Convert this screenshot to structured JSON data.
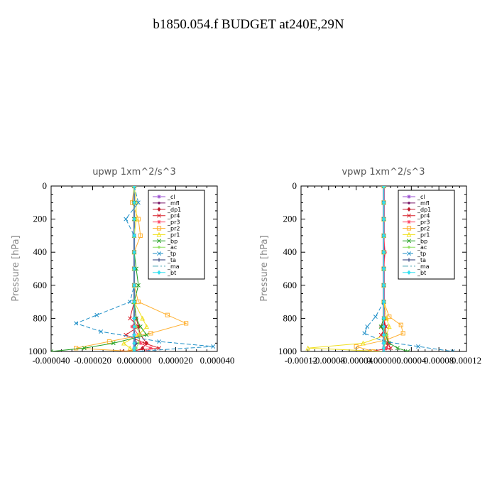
{
  "title": "b1850.054.f  BUDGET at240E,29N",
  "chart_data": [
    {
      "type": "line",
      "panel_title": "upwp   1xm^2/s^3",
      "ylabel": "Pressure  [hPa]",
      "xlim": [
        -4e-05,
        4e-05
      ],
      "ylim": [
        1000,
        0
      ],
      "xticks": [
        -4e-05,
        -2e-05,
        0,
        2e-05,
        4e-05
      ],
      "xtick_labels": [
        "-0.000040",
        "-0.000020",
        "0.000000",
        "0.000020",
        "0.000040"
      ],
      "yticks": [
        0,
        200,
        400,
        600,
        800,
        1000
      ],
      "ytick_labels": [
        "0",
        "200",
        "400",
        "600",
        "800",
        "1000"
      ],
      "legend_position": "top-right",
      "series": [
        {
          "name": "_cl",
          "color": "#9a4fd0",
          "marker": "*",
          "dash": "",
          "x": [
            0,
            0,
            0,
            0,
            0,
            0,
            0,
            0,
            0,
            0,
            0,
            0,
            0,
            0
          ],
          "y": [
            0,
            100,
            200,
            300,
            400,
            500,
            600,
            700,
            800,
            850,
            900,
            950,
            980,
            1000
          ]
        },
        {
          "name": "_mfl",
          "color": "#7a1a6a",
          "marker": "dot",
          "dash": "",
          "x": [
            0,
            0,
            0,
            0,
            0,
            0,
            0,
            0,
            0,
            0,
            0,
            0,
            0,
            0
          ],
          "y": [
            0,
            100,
            200,
            300,
            400,
            500,
            600,
            700,
            800,
            850,
            900,
            950,
            980,
            1000
          ]
        },
        {
          "name": "_dp1",
          "color": "#c0182a",
          "marker": "diamond",
          "dash": "",
          "x": [
            0,
            0,
            0,
            0,
            0,
            0,
            0,
            0,
            1e-06,
            2e-06,
            3e-06,
            6e-06,
            4e-06,
            0
          ],
          "y": [
            0,
            100,
            200,
            300,
            400,
            500,
            600,
            700,
            800,
            850,
            900,
            950,
            980,
            1000
          ]
        },
        {
          "name": "_pr4",
          "color": "#d8202a",
          "marker": "x",
          "dash": "",
          "x": [
            0,
            0,
            0,
            0,
            0,
            0,
            0,
            0,
            -2e-06,
            2e-06,
            -4e-06,
            5e-06,
            1.2e-05,
            -6e-06
          ],
          "y": [
            0,
            100,
            200,
            300,
            400,
            500,
            600,
            700,
            800,
            850,
            900,
            950,
            980,
            1000
          ]
        },
        {
          "name": "_pr3",
          "color": "#ff4060",
          "marker": "star",
          "dash": "",
          "x": [
            0,
            0,
            0,
            0,
            0,
            0,
            0,
            0,
            1e-06,
            -1e-06,
            2e-06,
            3e-06,
            8e-06,
            6e-06
          ],
          "y": [
            0,
            100,
            200,
            300,
            400,
            500,
            600,
            700,
            800,
            850,
            900,
            950,
            980,
            1000
          ]
        },
        {
          "name": "_pr2",
          "color": "#ffb030",
          "marker": "square",
          "dash": "",
          "x": [
            0,
            -1e-06,
            2e-06,
            3e-06,
            0,
            0,
            0,
            2e-06,
            1.6e-05,
            2.5e-05,
            8e-06,
            -1.2e-05,
            -2.8e-05,
            0
          ],
          "y": [
            0,
            100,
            200,
            300,
            400,
            500,
            600,
            700,
            780,
            830,
            890,
            940,
            980,
            1000
          ]
        },
        {
          "name": "_pr1",
          "color": "#f0e020",
          "marker": "triangle",
          "dash": "",
          "x": [
            0,
            1e-06,
            1e-06,
            0,
            0,
            0,
            0,
            0,
            4e-06,
            6e-06,
            2e-06,
            -5e-06,
            -2e-06,
            0
          ],
          "y": [
            0,
            100,
            200,
            300,
            400,
            500,
            600,
            700,
            800,
            850,
            900,
            950,
            980,
            1000
          ]
        },
        {
          "name": "_bp",
          "color": "#20a020",
          "marker": "x",
          "dash": "",
          "x": [
            0,
            0,
            0,
            0,
            0,
            1e-06,
            2e-06,
            0,
            1e-06,
            3e-06,
            6e-06,
            -1e-05,
            -2.4e-05,
            -4e-05
          ],
          "y": [
            0,
            100,
            200,
            300,
            400,
            500,
            600,
            700,
            800,
            850,
            900,
            950,
            980,
            1000
          ]
        },
        {
          "name": "_ac",
          "color": "#90e060",
          "marker": "dot",
          "dash": "",
          "x": [
            0,
            0,
            0,
            0,
            0,
            0,
            0,
            0,
            0,
            1e-06,
            3e-06,
            2e-06,
            1e-06,
            0
          ],
          "y": [
            0,
            100,
            200,
            300,
            400,
            500,
            600,
            700,
            800,
            850,
            900,
            950,
            980,
            1000
          ]
        },
        {
          "name": "_tp",
          "color": "#2090c8",
          "marker": "x",
          "dash": "6,3",
          "x": [
            0,
            2e-06,
            -4e-06,
            0,
            0,
            0,
            0,
            -2e-06,
            -1.8e-05,
            -2.8e-05,
            -1.6e-05,
            1.2e-05,
            3.8e-05,
            0
          ],
          "y": [
            0,
            100,
            200,
            300,
            400,
            500,
            600,
            700,
            780,
            830,
            880,
            940,
            970,
            1000
          ]
        },
        {
          "name": "_ta",
          "color": "#203070",
          "marker": "plus",
          "dash": "",
          "x": [
            0,
            0,
            0,
            0,
            0,
            0,
            0,
            0,
            0,
            0,
            0,
            1e-06,
            0,
            0
          ],
          "y": [
            0,
            100,
            200,
            300,
            400,
            500,
            600,
            700,
            800,
            850,
            900,
            950,
            980,
            1000
          ]
        },
        {
          "name": "_ma",
          "color": "#40a0b0",
          "marker": "none",
          "dash": "8,3,2,3",
          "x": [
            0,
            0,
            0,
            0,
            0,
            0,
            0,
            0,
            0,
            0,
            0,
            0,
            0,
            0
          ],
          "y": [
            0,
            100,
            200,
            300,
            400,
            500,
            600,
            700,
            800,
            850,
            900,
            950,
            980,
            1000
          ]
        },
        {
          "name": "_bt",
          "color": "#30e0f0",
          "marker": "diamond",
          "dash": "",
          "x": [
            0,
            0,
            0,
            0,
            0,
            0,
            0,
            0,
            0,
            0,
            0,
            0,
            0,
            0
          ],
          "y": [
            0,
            100,
            200,
            300,
            400,
            500,
            600,
            700,
            800,
            850,
            900,
            950,
            980,
            1000
          ]
        }
      ]
    },
    {
      "type": "line",
      "panel_title": "vpwp   1xm^2/s^3",
      "ylabel": "Pressure  [hPa]",
      "xlim": [
        -0.00012,
        0.00012
      ],
      "ylim": [
        1000,
        0
      ],
      "xticks": [
        -0.00012,
        -8e-05,
        -4e-05,
        0,
        4e-05,
        8e-05,
        0.00012
      ],
      "xtick_labels": [
        "-0.00012",
        "-0.00008",
        "-0.00004",
        "0.000000",
        "0.00004",
        "0.00008",
        "0.00012"
      ],
      "yticks": [
        0,
        200,
        400,
        600,
        800,
        1000
      ],
      "ytick_labels": [
        "0",
        "200",
        "400",
        "600",
        "800",
        "1000"
      ],
      "legend_position": "top-right",
      "series": [
        {
          "name": "_cl",
          "color": "#9a4fd0",
          "marker": "*",
          "dash": "",
          "x": [
            0,
            0,
            0,
            0,
            0,
            0,
            0,
            0,
            0,
            0,
            0,
            0,
            0,
            0
          ],
          "y": [
            0,
            100,
            200,
            300,
            400,
            500,
            600,
            700,
            800,
            850,
            900,
            950,
            980,
            1000
          ]
        },
        {
          "name": "_mfl",
          "color": "#7a1a6a",
          "marker": "dot",
          "dash": "",
          "x": [
            0,
            0,
            0,
            0,
            0,
            0,
            0,
            0,
            0,
            0,
            0,
            0,
            0,
            0
          ],
          "y": [
            0,
            100,
            200,
            300,
            400,
            500,
            600,
            700,
            800,
            850,
            900,
            950,
            980,
            1000
          ]
        },
        {
          "name": "_dp1",
          "color": "#c0182a",
          "marker": "diamond",
          "dash": "",
          "x": [
            0,
            0,
            0,
            0,
            0,
            0,
            0,
            0,
            0,
            2e-06,
            4e-06,
            6e-06,
            4e-06,
            0
          ],
          "y": [
            0,
            100,
            200,
            300,
            400,
            500,
            600,
            700,
            800,
            850,
            900,
            950,
            980,
            1000
          ]
        },
        {
          "name": "_pr4",
          "color": "#d8202a",
          "marker": "x",
          "dash": "",
          "x": [
            0,
            0,
            0,
            0,
            0,
            0,
            0,
            0,
            0,
            3e-06,
            -4e-06,
            6e-06,
            1e-05,
            -2e-05
          ],
          "y": [
            0,
            100,
            200,
            300,
            400,
            500,
            600,
            700,
            800,
            850,
            900,
            950,
            980,
            1000
          ]
        },
        {
          "name": "_pr3",
          "color": "#ff4060",
          "marker": "star",
          "dash": "",
          "x": [
            0,
            0,
            0,
            0,
            2e-06,
            0,
            0,
            0,
            4e-06,
            -4e-06,
            4e-06,
            8e-06,
            4e-06,
            0
          ],
          "y": [
            0,
            100,
            200,
            300,
            400,
            500,
            600,
            700,
            800,
            850,
            900,
            950,
            980,
            1000
          ]
        },
        {
          "name": "_pr2",
          "color": "#ffb030",
          "marker": "square",
          "dash": "",
          "x": [
            0,
            0,
            0,
            0,
            0,
            0,
            0,
            0,
            8e-06,
            2.5e-05,
            2.8e-05,
            4e-06,
            -4e-05,
            -1.5e-05
          ],
          "y": [
            0,
            100,
            200,
            300,
            400,
            500,
            600,
            700,
            790,
            840,
            890,
            930,
            970,
            1000
          ]
        },
        {
          "name": "_pr1",
          "color": "#f0e020",
          "marker": "triangle",
          "dash": "",
          "x": [
            0,
            0,
            0,
            0,
            0,
            0,
            0,
            0,
            4e-06,
            8e-06,
            4e-06,
            -3e-05,
            -0.00011,
            0
          ],
          "y": [
            0,
            100,
            200,
            300,
            400,
            500,
            600,
            700,
            800,
            850,
            900,
            950,
            980,
            1000
          ]
        },
        {
          "name": "_bp",
          "color": "#20a020",
          "marker": "x",
          "dash": "",
          "x": [
            0,
            0,
            0,
            0,
            0,
            0,
            0,
            0,
            0,
            -4e-06,
            2e-06,
            8e-06,
            2e-05,
            3.5e-05
          ],
          "y": [
            0,
            100,
            200,
            300,
            400,
            500,
            600,
            700,
            800,
            850,
            900,
            950,
            980,
            1000
          ]
        },
        {
          "name": "_ac",
          "color": "#90e060",
          "marker": "dot",
          "dash": "",
          "x": [
            0,
            0,
            0,
            0,
            0,
            0,
            0,
            0,
            0,
            0,
            4e-06,
            2e-06,
            0,
            0
          ],
          "y": [
            0,
            100,
            200,
            300,
            400,
            500,
            600,
            700,
            800,
            850,
            900,
            950,
            980,
            1000
          ]
        },
        {
          "name": "_tp",
          "color": "#2090c8",
          "marker": "x",
          "dash": "6,3",
          "x": [
            0,
            0,
            0,
            0,
            0,
            0,
            0,
            0,
            -1.2e-05,
            -2.4e-05,
            -2.8e-05,
            0,
            5e-05,
            0.0001
          ],
          "y": [
            0,
            100,
            200,
            300,
            400,
            500,
            600,
            700,
            790,
            850,
            890,
            940,
            970,
            1000
          ]
        },
        {
          "name": "_ta",
          "color": "#203070",
          "marker": "plus",
          "dash": "",
          "x": [
            0,
            0,
            0,
            0,
            0,
            0,
            0,
            0,
            0,
            0,
            0,
            0,
            0,
            0
          ],
          "y": [
            0,
            100,
            200,
            300,
            400,
            500,
            600,
            700,
            800,
            850,
            900,
            950,
            980,
            1000
          ]
        },
        {
          "name": "_ma",
          "color": "#40a0b0",
          "marker": "none",
          "dash": "8,3,2,3",
          "x": [
            0,
            0,
            0,
            0,
            0,
            0,
            0,
            0,
            0,
            0,
            0,
            0,
            0,
            0
          ],
          "y": [
            0,
            100,
            200,
            300,
            400,
            500,
            600,
            700,
            800,
            850,
            900,
            950,
            980,
            1000
          ]
        },
        {
          "name": "_bt",
          "color": "#30e0f0",
          "marker": "diamond",
          "dash": "",
          "x": [
            0,
            0,
            0,
            0,
            0,
            0,
            0,
            0,
            0,
            0,
            0,
            0,
            0,
            0
          ],
          "y": [
            0,
            100,
            200,
            300,
            400,
            500,
            600,
            700,
            800,
            850,
            900,
            950,
            980,
            1000
          ]
        }
      ]
    }
  ]
}
